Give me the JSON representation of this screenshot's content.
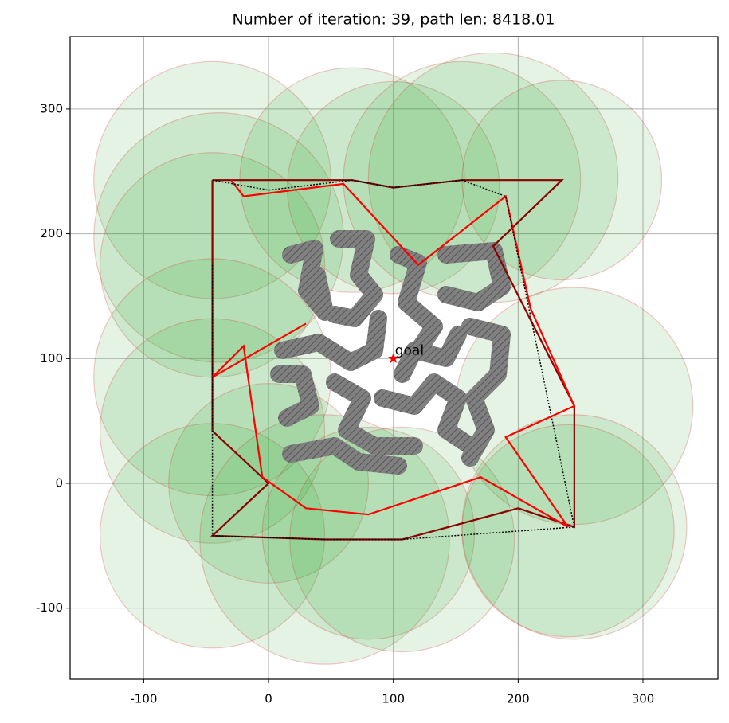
{
  "chart_data": {
    "type": "line",
    "title": "Number of iteration: 39, path len: 8418.01",
    "xlim": [
      -159,
      360
    ],
    "ylim": [
      -157,
      358
    ],
    "xticks": [
      -100,
      0,
      100,
      200,
      300
    ],
    "yticks": [
      -100,
      0,
      100,
      200,
      300
    ],
    "grid": true,
    "circles": {
      "color": "#2ca02c",
      "edge": "#d62728",
      "x": [
        -45,
        -40,
        -45,
        -45,
        -45,
        -45,
        0,
        45,
        80,
        107,
        67,
        100,
        155,
        180,
        235,
        245,
        245,
        240
      ],
      "y": [
        243,
        197,
        175,
        85,
        42,
        -42,
        0,
        -45,
        -40,
        -45,
        243,
        237,
        243,
        245,
        243,
        62,
        -35,
        -38
      ],
      "r": [
        95,
        100,
        90,
        95,
        90,
        90,
        80,
        100,
        85,
        90,
        90,
        85,
        95,
        100,
        80,
        95,
        90,
        85
      ]
    },
    "series": [
      {
        "color": "#8b0000",
        "x": [
          -45,
          67,
          100,
          155,
          235,
          180,
          245,
          245,
          200,
          107,
          45,
          -45,
          0,
          -45,
          -45,
          -45,
          -45
        ],
        "values": [
          243,
          243,
          237,
          243,
          243,
          190,
          62,
          -35,
          -20,
          -45,
          -45,
          -42,
          0,
          42,
          85,
          175,
          243
        ]
      },
      {
        "color": "#ff0000",
        "x": [
          -30,
          -20,
          60,
          120,
          190,
          210,
          245,
          190,
          240,
          170,
          80,
          30,
          -5,
          -20,
          -45,
          30
        ],
        "values": [
          243,
          230,
          240,
          175,
          230,
          140,
          62,
          37,
          -35,
          5,
          -25,
          -20,
          5,
          110,
          85,
          128
        ]
      },
      {
        "color": "#000000",
        "x": [
          -45,
          0,
          67,
          100,
          155,
          190,
          245,
          107,
          45,
          -45,
          -45,
          -45
        ],
        "values": [
          243,
          235,
          243,
          237,
          243,
          230,
          -35,
          -45,
          -45,
          -42,
          42,
          175
        ]
      }
    ],
    "goal": {
      "x": 100,
      "y": 100,
      "label": "goal",
      "color": "#ff0000"
    }
  }
}
